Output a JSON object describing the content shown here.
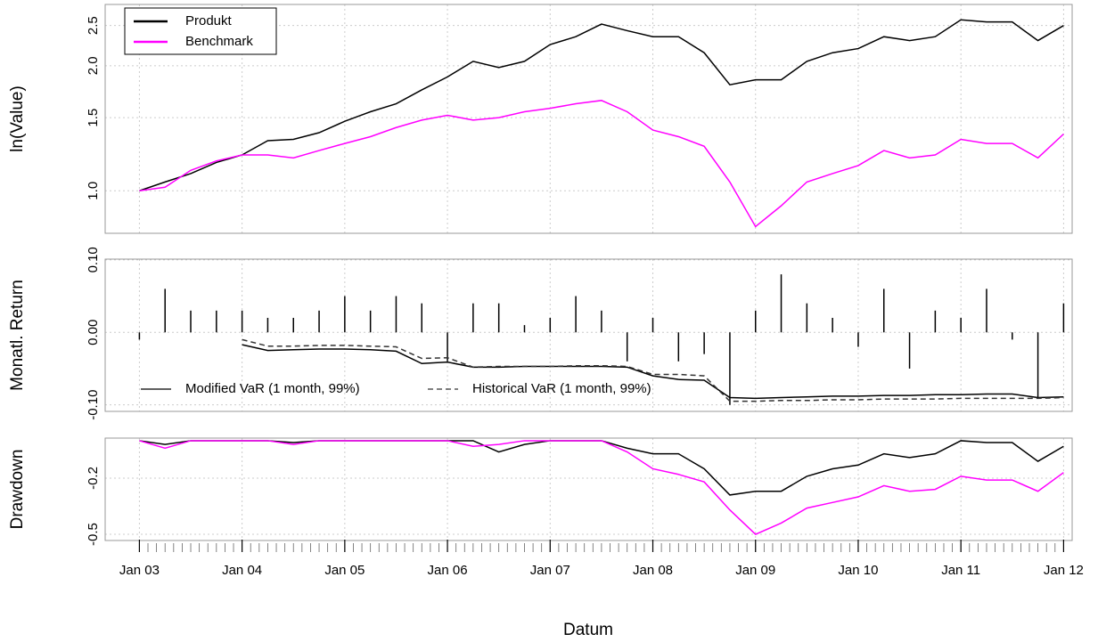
{
  "chart_data": [
    {
      "type": "line",
      "ylabel": "ln(Value)",
      "log_y": true,
      "grid": true,
      "legend": "top-left",
      "x": [
        "2003-01",
        "2003-04",
        "2003-07",
        "2003-10",
        "2004-01",
        "2004-04",
        "2004-07",
        "2004-10",
        "2005-01",
        "2005-04",
        "2005-07",
        "2005-10",
        "2006-01",
        "2006-04",
        "2006-07",
        "2006-10",
        "2007-01",
        "2007-04",
        "2007-07",
        "2007-10",
        "2008-01",
        "2008-04",
        "2008-07",
        "2008-10",
        "2009-01",
        "2009-04",
        "2009-07",
        "2009-10",
        "2010-01",
        "2010-04",
        "2010-07",
        "2010-10",
        "2011-01",
        "2011-04",
        "2011-07",
        "2011-10",
        "2012-01"
      ],
      "xlim": [
        "2002-09",
        "2012-02"
      ],
      "ylim": [
        0.79,
        2.81
      ],
      "yticks": [
        {
          "value": 1,
          "label": "1.0"
        },
        1.5,
        {
          "value": 2,
          "label": "2.0"
        },
        2.5
      ],
      "series": [
        {
          "name": "Produkt",
          "color": "#000000",
          "values": [
            1.0,
            1.05,
            1.1,
            1.17,
            1.22,
            1.32,
            1.33,
            1.38,
            1.47,
            1.55,
            1.62,
            1.75,
            1.88,
            2.05,
            1.98,
            2.05,
            2.25,
            2.35,
            2.52,
            2.43,
            2.35,
            2.35,
            2.15,
            1.8,
            1.85,
            1.85,
            2.05,
            2.15,
            2.2,
            2.35,
            2.3,
            2.35,
            2.58,
            2.55,
            2.55,
            2.3,
            2.5
          ]
        },
        {
          "name": "Benchmark",
          "color": "#ff00ff",
          "values": [
            1.0,
            1.02,
            1.12,
            1.18,
            1.22,
            1.22,
            1.2,
            1.25,
            1.3,
            1.35,
            1.42,
            1.48,
            1.52,
            1.48,
            1.5,
            1.55,
            1.58,
            1.62,
            1.65,
            1.55,
            1.4,
            1.35,
            1.28,
            1.05,
            0.82,
            0.92,
            1.05,
            1.1,
            1.15,
            1.25,
            1.2,
            1.22,
            1.33,
            1.3,
            1.3,
            1.2,
            1.37
          ]
        }
      ]
    },
    {
      "type": "bar",
      "ylabel": "Monatl. Return",
      "grid": true,
      "legend": "bottom-left",
      "x": [
        "2003-01",
        "2003-04",
        "2003-07",
        "2003-10",
        "2004-01",
        "2004-04",
        "2004-07",
        "2004-10",
        "2005-01",
        "2005-04",
        "2005-07",
        "2005-10",
        "2006-01",
        "2006-04",
        "2006-07",
        "2006-10",
        "2007-01",
        "2007-04",
        "2007-07",
        "2007-10",
        "2008-01",
        "2008-04",
        "2008-07",
        "2008-10",
        "2009-01",
        "2009-04",
        "2009-07",
        "2009-10",
        "2010-01",
        "2010-04",
        "2010-07",
        "2010-10",
        "2011-01",
        "2011-04",
        "2011-07",
        "2011-10",
        "2012-01"
      ],
      "xlim": [
        "2002-09",
        "2012-02"
      ],
      "ylim": [
        -0.109,
        0.101
      ],
      "yticks": [
        {
          "value": -0.1,
          "label": "-0.10"
        },
        {
          "value": 0,
          "label": "0.00"
        },
        {
          "value": 0.1,
          "label": "0.10"
        }
      ],
      "series": [
        {
          "type": "bar",
          "color": "#000000",
          "values": [
            -0.01,
            0.06,
            0.03,
            0.03,
            0.03,
            0.02,
            0.02,
            0.03,
            0.05,
            0.03,
            0.05,
            0.04,
            -0.04,
            0.04,
            0.04,
            0.01,
            0.02,
            0.05,
            0.03,
            -0.04,
            0.02,
            -0.04,
            -0.03,
            -0.1,
            0.03,
            0.08,
            0.04,
            0.02,
            -0.02,
            0.06,
            -0.05,
            0.03,
            0.02,
            0.06,
            -0.01,
            -0.09,
            0.04
          ]
        },
        {
          "type": "line",
          "name": "Modified VaR (1 month, 99%)",
          "color": "#000000",
          "dash": "solid",
          "values": [
            null,
            null,
            null,
            null,
            -0.017,
            -0.025,
            -0.024,
            -0.023,
            -0.023,
            -0.024,
            -0.026,
            -0.043,
            -0.041,
            -0.048,
            -0.048,
            -0.047,
            -0.047,
            -0.047,
            -0.047,
            -0.048,
            -0.06,
            -0.065,
            -0.066,
            -0.09,
            -0.091,
            -0.09,
            -0.089,
            -0.088,
            -0.088,
            -0.087,
            -0.087,
            -0.086,
            -0.086,
            -0.085,
            -0.085,
            -0.09,
            -0.089
          ]
        },
        {
          "type": "line",
          "name": "Historical VaR (1 month, 99%)",
          "color": "#333333",
          "dash": "dashed",
          "values": [
            null,
            null,
            null,
            null,
            -0.01,
            -0.019,
            -0.019,
            -0.018,
            -0.018,
            -0.019,
            -0.02,
            -0.036,
            -0.035,
            -0.048,
            -0.047,
            -0.047,
            -0.047,
            -0.046,
            -0.046,
            -0.047,
            -0.058,
            -0.058,
            -0.06,
            -0.095,
            -0.095,
            -0.094,
            -0.094,
            -0.093,
            -0.093,
            -0.092,
            -0.092,
            -0.092,
            -0.091,
            -0.091,
            -0.091,
            -0.091,
            -0.09
          ]
        }
      ]
    },
    {
      "type": "line",
      "ylabel": "Drawdown",
      "xlabel": "Datum",
      "grid": true,
      "x": [
        "2003-01",
        "2003-04",
        "2003-07",
        "2003-10",
        "2004-01",
        "2004-04",
        "2004-07",
        "2004-10",
        "2005-01",
        "2005-04",
        "2005-07",
        "2005-10",
        "2006-01",
        "2006-04",
        "2006-07",
        "2006-10",
        "2007-01",
        "2007-04",
        "2007-07",
        "2007-10",
        "2008-01",
        "2008-04",
        "2008-07",
        "2008-10",
        "2009-01",
        "2009-04",
        "2009-07",
        "2009-10",
        "2010-01",
        "2010-04",
        "2010-07",
        "2010-10",
        "2011-01",
        "2011-04",
        "2011-07",
        "2011-10",
        "2012-01"
      ],
      "xlim": [
        "2002-09",
        "2012-02"
      ],
      "ylim": [
        -0.533,
        0.014
      ],
      "yticks": [
        -0.5,
        -0.2
      ],
      "xticks": [
        {
          "value": "2003-01",
          "label": "Jan 03"
        },
        {
          "value": "2004-01",
          "label": "Jan 04"
        },
        {
          "value": "2005-01",
          "label": "Jan 05"
        },
        {
          "value": "2006-01",
          "label": "Jan 06"
        },
        {
          "value": "2007-01",
          "label": "Jan 07"
        },
        {
          "value": "2008-01",
          "label": "Jan 08"
        },
        {
          "value": "2009-01",
          "label": "Jan 09"
        },
        {
          "value": "2010-01",
          "label": "Jan 10"
        },
        {
          "value": "2011-01",
          "label": "Jan 11"
        },
        {
          "value": "2012-01",
          "label": "Jan 12"
        }
      ],
      "series": [
        {
          "color": "#000000",
          "values": [
            0,
            -0.02,
            0,
            0,
            0,
            0,
            -0.01,
            0,
            0,
            0,
            0,
            0,
            0,
            0,
            -0.06,
            -0.02,
            0,
            0,
            0,
            -0.04,
            -0.07,
            -0.07,
            -0.15,
            -0.29,
            -0.27,
            -0.27,
            -0.19,
            -0.15,
            -0.13,
            -0.07,
            -0.09,
            -0.07,
            0,
            -0.01,
            -0.01,
            -0.11,
            -0.03
          ]
        },
        {
          "color": "#ff00ff",
          "values": [
            0,
            -0.04,
            0,
            0,
            0,
            0,
            -0.02,
            0,
            0,
            0,
            0,
            0,
            0,
            -0.03,
            -0.02,
            0,
            0,
            0,
            0,
            -0.06,
            -0.15,
            -0.18,
            -0.22,
            -0.37,
            -0.5,
            -0.44,
            -0.36,
            -0.33,
            -0.3,
            -0.24,
            -0.27,
            -0.26,
            -0.19,
            -0.21,
            -0.21,
            -0.27,
            -0.17
          ]
        }
      ]
    }
  ]
}
